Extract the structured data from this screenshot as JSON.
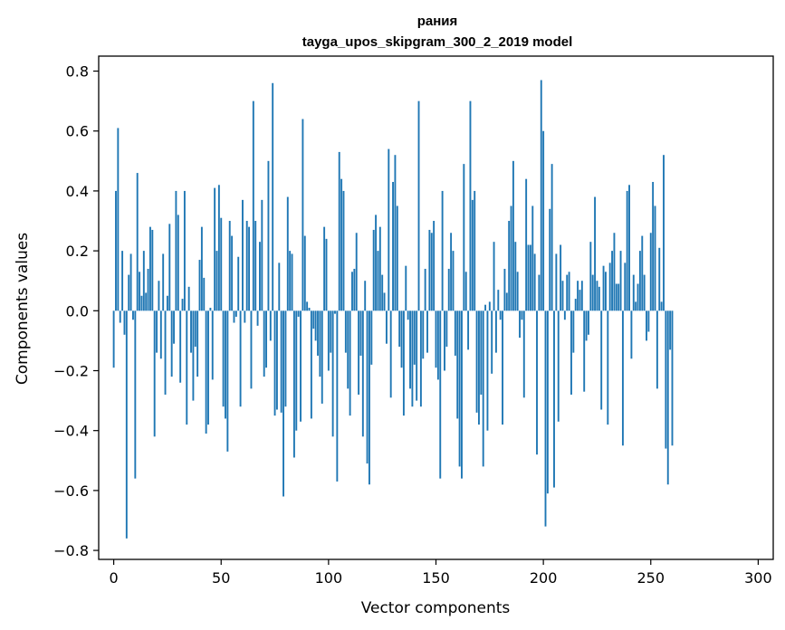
{
  "chart_data": {
    "type": "bar",
    "title": "рания",
    "subtitle": "tayga_upos_skipgram_300_2_2019 model",
    "xlabel": "Vector components",
    "ylabel": "Components values",
    "xlim": [
      -7,
      307
    ],
    "ylim": [
      -0.83,
      0.85
    ],
    "xticks": [
      0,
      50,
      100,
      150,
      200,
      250,
      300
    ],
    "xtick_labels": [
      "0",
      "50",
      "100",
      "150",
      "200",
      "250",
      "300"
    ],
    "yticks": [
      -0.8,
      -0.6,
      -0.4,
      -0.2,
      0.0,
      0.2,
      0.4,
      0.6,
      0.8
    ],
    "ytick_labels": [
      "−0.8",
      "−0.6",
      "−0.4",
      "−0.2",
      "0.0",
      "0.2",
      "0.4",
      "0.6",
      "0.8"
    ],
    "bar_color": "#1f77b4",
    "grid": false,
    "values": [
      -0.19,
      0.4,
      0.61,
      -0.04,
      0.2,
      -0.08,
      -0.76,
      0.12,
      0.19,
      -0.03,
      -0.56,
      0.46,
      0.13,
      0.05,
      0.2,
      0.06,
      0.14,
      0.28,
      0.27,
      -0.42,
      -0.14,
      0.1,
      -0.16,
      0.19,
      -0.28,
      0.05,
      0.29,
      -0.22,
      -0.11,
      0.4,
      0.32,
      -0.24,
      0.04,
      0.4,
      -0.38,
      0.08,
      -0.14,
      -0.3,
      -0.12,
      -0.22,
      0.17,
      0.28,
      0.11,
      -0.41,
      -0.38,
      0.01,
      -0.23,
      0.41,
      0.2,
      0.42,
      0.31,
      -0.32,
      -0.36,
      -0.47,
      0.3,
      0.25,
      -0.04,
      -0.02,
      0.18,
      -0.32,
      0.37,
      -0.04,
      0.3,
      0.28,
      -0.26,
      0.7,
      0.3,
      -0.05,
      0.23,
      0.37,
      -0.22,
      -0.19,
      0.5,
      -0.1,
      0.76,
      -0.35,
      -0.33,
      0.16,
      -0.34,
      -0.62,
      -0.32,
      0.38,
      0.2,
      0.19,
      -0.49,
      -0.4,
      -0.02,
      -0.37,
      0.64,
      0.25,
      0.03,
      0.01,
      -0.36,
      -0.06,
      -0.1,
      -0.15,
      -0.22,
      -0.31,
      0.28,
      0.24,
      -0.2,
      -0.14,
      -0.42,
      -0.01,
      -0.57,
      0.53,
      0.44,
      0.4,
      -0.14,
      -0.26,
      -0.35,
      0.13,
      0.14,
      0.26,
      -0.28,
      -0.15,
      -0.42,
      0.1,
      -0.51,
      -0.58,
      -0.18,
      0.27,
      0.32,
      0.2,
      0.28,
      0.12,
      0.06,
      -0.11,
      0.54,
      -0.29,
      0.43,
      0.52,
      0.35,
      -0.12,
      -0.19,
      -0.35,
      0.15,
      -0.03,
      -0.26,
      -0.32,
      -0.18,
      -0.3,
      0.7,
      -0.32,
      -0.16,
      0.14,
      -0.14,
      0.27,
      0.26,
      0.3,
      -0.19,
      -0.23,
      -0.56,
      0.4,
      -0.2,
      -0.12,
      0.14,
      0.26,
      0.2,
      -0.15,
      -0.36,
      -0.52,
      -0.56,
      0.49,
      0.13,
      -0.13,
      0.7,
      0.37,
      0.4,
      -0.34,
      -0.38,
      -0.28,
      -0.52,
      0.02,
      -0.4,
      0.03,
      -0.21,
      0.23,
      -0.14,
      0.07,
      -0.03,
      -0.38,
      0.14,
      0.06,
      0.3,
      0.35,
      0.5,
      0.23,
      0.13,
      -0.09,
      -0.03,
      -0.29,
      0.44,
      0.22,
      0.22,
      0.35,
      0.19,
      -0.48,
      0.12,
      0.77,
      0.6,
      -0.72,
      -0.61,
      0.34,
      0.49,
      -0.59,
      0.19,
      -0.37,
      0.22,
      0.1,
      -0.03,
      0.12,
      0.13,
      -0.28,
      -0.14,
      0.04,
      0.1,
      0.07,
      0.1,
      -0.27,
      -0.1,
      -0.08,
      0.23,
      0.12,
      0.38,
      0.1,
      0.08,
      -0.33,
      0.15,
      0.13,
      -0.38,
      0.16,
      0.2,
      0.26,
      0.09,
      0.09,
      0.2,
      -0.45,
      0.16,
      0.4,
      0.42,
      -0.16,
      0.12,
      0.03,
      0.09,
      0.2,
      0.25,
      0.12,
      -0.1,
      -0.07,
      0.26,
      0.43,
      0.35,
      -0.26,
      0.21,
      0.03,
      0.52,
      -0.46,
      -0.58,
      -0.13,
      -0.45
    ]
  }
}
